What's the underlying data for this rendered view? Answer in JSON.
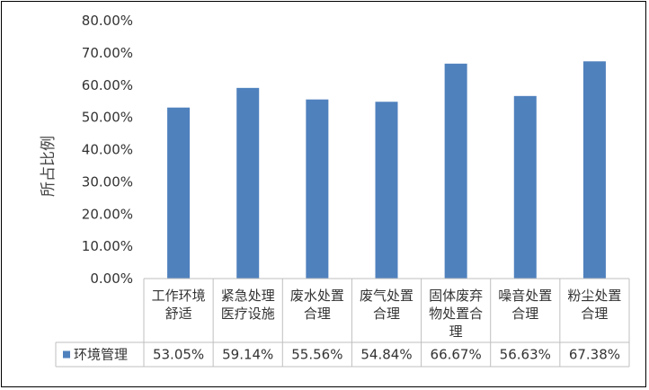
{
  "chart_data": {
    "type": "bar",
    "ylabel": "所占比例",
    "ylim": [
      0,
      0.8
    ],
    "y_ticks": [
      "0.00%",
      "10.00%",
      "20.00%",
      "30.00%",
      "40.00%",
      "50.00%",
      "60.00%",
      "70.00%",
      "80.00%"
    ],
    "grid": false,
    "legend": "bottom-left (data table)",
    "categories": [
      [
        "工作环境",
        "舒适"
      ],
      [
        "紧急处理",
        "医疗设施"
      ],
      [
        "废水处置",
        "合理"
      ],
      [
        "废气处置",
        "合理"
      ],
      [
        "固体废弃",
        "物处置合",
        "理"
      ],
      [
        "噪音处置",
        "合理"
      ],
      [
        "粉尘处置",
        "合理"
      ]
    ],
    "series": [
      {
        "name": "环境管理",
        "color": "#4f81bd",
        "values": [
          0.5305,
          0.5914,
          0.5556,
          0.5484,
          0.6667,
          0.5663,
          0.6738
        ],
        "value_labels": [
          "53.05%",
          "59.14%",
          "55.56%",
          "54.84%",
          "66.67%",
          "56.63%",
          "67.38%"
        ]
      }
    ]
  }
}
